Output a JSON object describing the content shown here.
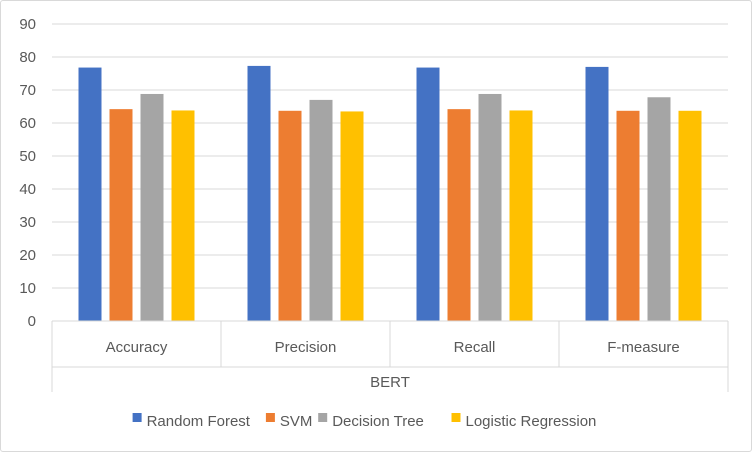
{
  "chart_data": {
    "type": "bar",
    "title": "",
    "xlabel": "BERT",
    "ylabel": "",
    "ylim": [
      0,
      90
    ],
    "yticks": [
      0,
      10,
      20,
      30,
      40,
      50,
      60,
      70,
      80,
      90
    ],
    "grid": true,
    "legend_position": "bottom",
    "categories": [
      "Accuracy",
      "Precision",
      "Recall",
      "F-measure"
    ],
    "group_label": "BERT",
    "series": [
      {
        "name": "Random Forest",
        "color": "#4472C4",
        "values": [
          76.8,
          77.3,
          76.8,
          77.0
        ]
      },
      {
        "name": "SVM",
        "color": "#ED7D31",
        "values": [
          64.2,
          63.7,
          64.2,
          63.7
        ]
      },
      {
        "name": "Decision Tree",
        "color": "#A5A5A5",
        "values": [
          68.8,
          67.0,
          68.8,
          67.8
        ]
      },
      {
        "name": "Logistic Regression",
        "color": "#FFC000",
        "values": [
          63.8,
          63.5,
          63.8,
          63.7
        ]
      }
    ]
  }
}
